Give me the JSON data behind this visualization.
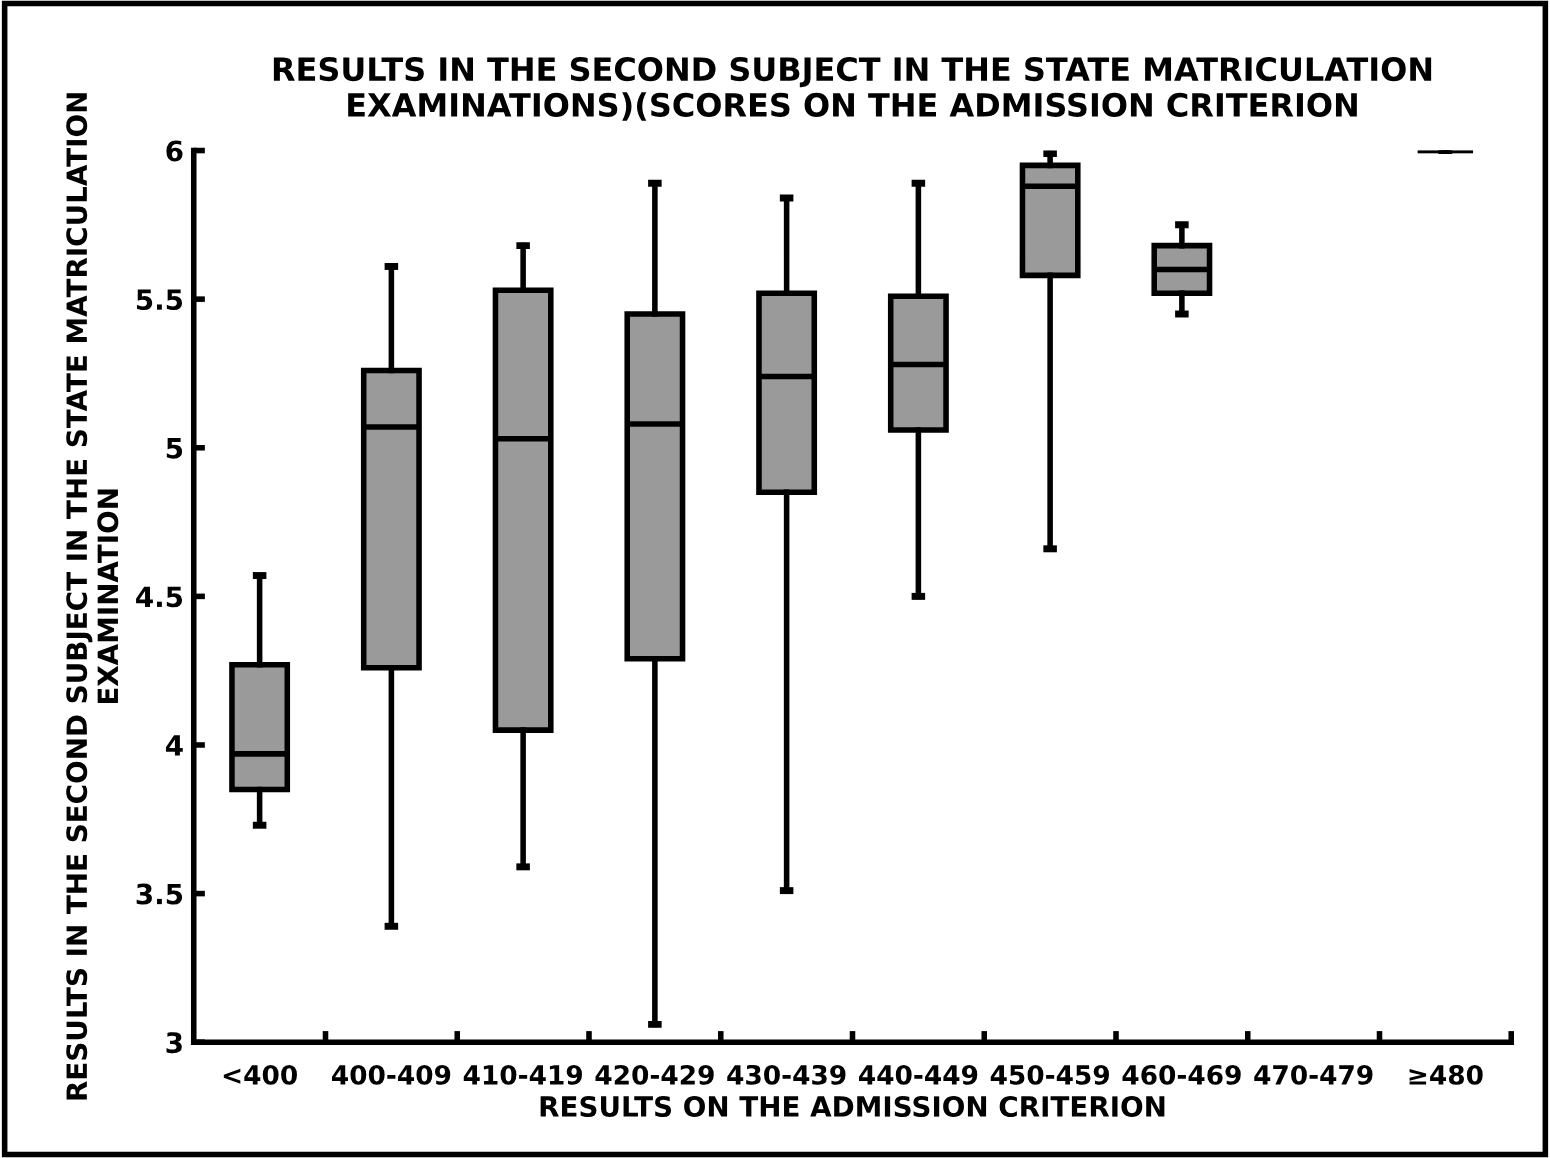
{
  "chart_data": {
    "type": "box",
    "title": "RESULTS IN THE SECOND SUBJECT IN THE STATE MATRICULATION EXAMINATIONS)(SCORES ON THE ADMISSION CRITERION",
    "xlabel": "RESULTS ON THE ADMISSION CRITERION",
    "ylabel": "RESULTS IN THE SECOND SUBJECT IN THE STATE MATRICULATION EXAMINATION",
    "categories": [
      "<400",
      "400-409",
      "410-419",
      "420-429",
      "430-439",
      "440-449",
      "450-459",
      "460-469",
      "470-479",
      "≥480"
    ],
    "color": "#9a9a9a",
    "boxes": [
      {
        "low": 3.73,
        "q1": 3.85,
        "median": 3.97,
        "q3": 4.27,
        "high": 4.57
      },
      {
        "low": 3.39,
        "q1": 4.26,
        "median": 5.07,
        "q3": 5.26,
        "high": 5.61
      },
      {
        "low": 3.59,
        "q1": 4.05,
        "median": 5.03,
        "q3": 5.53,
        "high": 5.68
      },
      {
        "low": 3.06,
        "q1": 4.29,
        "median": 5.08,
        "q3": 5.45,
        "high": 5.89
      },
      {
        "low": 3.51,
        "q1": 4.85,
        "median": 5.24,
        "q3": 5.52,
        "high": 5.84
      },
      {
        "low": 4.5,
        "q1": 5.06,
        "median": 5.28,
        "q3": 5.51,
        "high": 5.89
      },
      {
        "low": 4.66,
        "q1": 5.58,
        "median": 5.88,
        "q3": 5.95,
        "high": 5.99
      },
      {
        "low": 5.45,
        "q1": 5.52,
        "median": 5.6,
        "q3": 5.68,
        "high": 5.75
      },
      null,
      {
        "low": 6,
        "q1": 6,
        "median": 6,
        "q3": 6,
        "high": 6
      }
    ],
    "ylim": [
      3,
      6
    ],
    "yticks": [
      3,
      3.5,
      4,
      4.5,
      5,
      5.5,
      6
    ],
    "grid": false,
    "legend": false
  }
}
